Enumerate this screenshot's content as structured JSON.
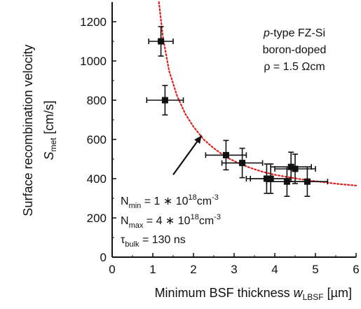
{
  "chart_data": {
    "type": "scatter",
    "x_range": [
      0,
      6
    ],
    "y_range": [
      0,
      1300
    ],
    "x_ticks": [
      0,
      1,
      2,
      3,
      4,
      5,
      6
    ],
    "y_ticks": [
      0,
      200,
      400,
      600,
      800,
      1000,
      1200
    ],
    "points": [
      {
        "x": 1.2,
        "y": 1100,
        "xerr": 0.3,
        "yerr": 75
      },
      {
        "x": 1.3,
        "y": 800,
        "xerr": 0.45,
        "yerr": 75
      },
      {
        "x": 2.8,
        "y": 520,
        "xerr": 0.5,
        "yerr": 75
      },
      {
        "x": 3.2,
        "y": 480,
        "xerr": 0.5,
        "yerr": 75
      },
      {
        "x": 3.8,
        "y": 400,
        "xerr": 0.5,
        "yerr": 75
      },
      {
        "x": 3.9,
        "y": 400,
        "xerr": 0.5,
        "yerr": 75
      },
      {
        "x": 4.3,
        "y": 385,
        "xerr": 0.5,
        "yerr": 75
      },
      {
        "x": 4.4,
        "y": 460,
        "xerr": 0.5,
        "yerr": 75
      },
      {
        "x": 4.5,
        "y": 450,
        "xerr": 0.5,
        "yerr": 75
      },
      {
        "x": 4.8,
        "y": 385,
        "xerr": 0.5,
        "yerr": 75
      }
    ],
    "fit_curve": {
      "style": "dotted",
      "color": "#e0201e",
      "x": [
        1.15,
        1.25,
        1.4,
        1.6,
        1.8,
        2.0,
        2.25,
        2.5,
        2.8,
        3.1,
        3.4,
        3.7,
        4.0,
        4.4,
        4.8,
        5.2,
        5.6,
        6.0
      ],
      "y": [
        1300,
        1120,
        950,
        820,
        730,
        665,
        600,
        555,
        510,
        480,
        455,
        435,
        420,
        405,
        392,
        382,
        372,
        365
      ]
    },
    "arrow": {
      "from": [
        1.5,
        420
      ],
      "to": [
        2.2,
        620
      ]
    },
    "grid": false,
    "y_axis_title": {
      "line1": "Surface recombination velocity",
      "symbol": "S",
      "subscript": "met",
      "unit": " [cm/s]"
    },
    "x_axis_title": {
      "text": "Minimum BSF thickness ",
      "symbol": "w",
      "subscript": "LBSF",
      "unit": " [µm]"
    },
    "annotation_top_right": {
      "line1_italic": "p",
      "line1_rest": "-type FZ-Si",
      "line2": "boron-doped",
      "line3": "ρ = 1.5 Ωcm"
    },
    "annotation_bottom_left": {
      "nmin_sub": "min",
      "nmin_mid": " = 1 ∗ 10",
      "nmin_exp": "18",
      "nmin_unit": "cm",
      "nmin_unit_exp": "-3",
      "nmax_sub": "max",
      "nmax_mid": " = 4 ∗ 10",
      "nmax_exp": "18",
      "nmax_unit": "cm",
      "nmax_unit_exp": "-3",
      "tau_sub": "bulk",
      "tau_rest": " = 130 ns"
    },
    "symbols": {
      "N": "N",
      "tau": "τ"
    },
    "colors": {
      "data": "#111111",
      "fit": "#e0201e",
      "axis": "#111111"
    }
  }
}
